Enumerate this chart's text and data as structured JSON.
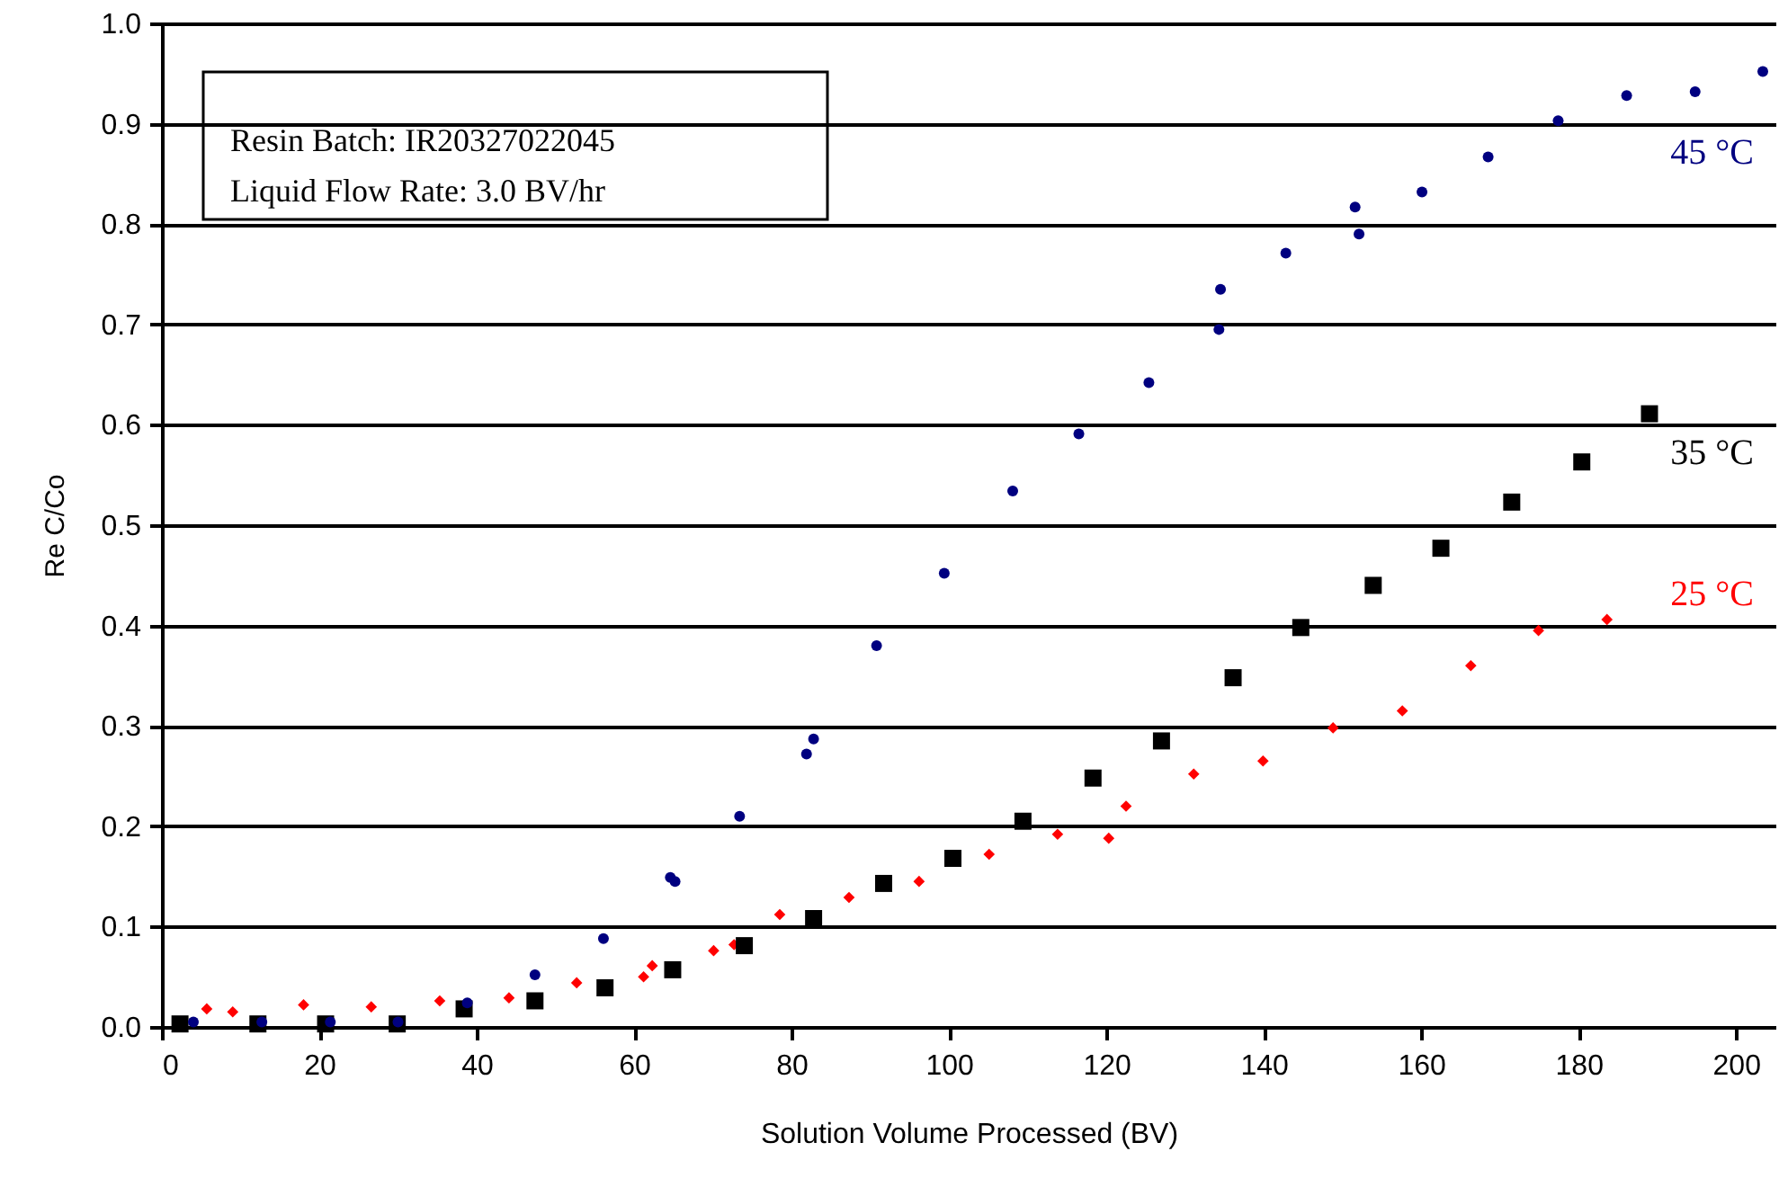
{
  "chart_data": {
    "type": "scatter",
    "xlabel": "Solution Volume Processed (BV)",
    "ylabel": "Re C/Co",
    "annotations": [
      "Resin Batch: IR20327022045",
      "Liquid Flow Rate: 3.0 BV/hr"
    ],
    "xlim": [
      0,
      205
    ],
    "xticks": [
      0,
      20,
      40,
      60,
      80,
      100,
      120,
      140,
      160,
      180,
      200
    ],
    "ylim": [
      0,
      1
    ],
    "yticks": [
      {
        "value": 0,
        "label": "0.0"
      },
      0.1,
      0.2,
      0.3,
      0.4,
      0.5,
      0.6,
      0.7,
      0.8,
      0.9,
      {
        "value": 1,
        "label": "1.0"
      }
    ],
    "grid": "y",
    "series": [
      {
        "name": "45 °C",
        "color": "#000080",
        "marker": "circle",
        "x": [
          4.0,
          12.7,
          21.4,
          30.0,
          38.8,
          47.4,
          56.1,
          64.6,
          65.2,
          73.4,
          81.9,
          82.8,
          90.8,
          99.4,
          108.1,
          116.5,
          125.4,
          134.3,
          134.5,
          142.8,
          152.1,
          151.6,
          160.1,
          168.5,
          177.4,
          186.1,
          194.8,
          203.4
        ],
        "values": [
          0.005,
          0.005,
          0.005,
          0.005,
          0.024,
          0.052,
          0.088,
          0.149,
          0.145,
          0.21,
          0.272,
          0.287,
          0.38,
          0.452,
          0.534,
          0.591,
          0.642,
          0.695,
          0.735,
          0.771,
          0.79,
          0.817,
          0.832,
          0.867,
          0.903,
          0.928,
          0.932,
          0.952
        ]
      },
      {
        "name": "35 °C",
        "color": "#000000",
        "marker": "square",
        "x": [
          2.3,
          12.2,
          20.8,
          29.9,
          38.4,
          47.4,
          56.3,
          64.9,
          74.0,
          82.8,
          91.7,
          100.5,
          109.4,
          118.3,
          127.0,
          136.1,
          144.7,
          153.9,
          162.5,
          171.5,
          180.4,
          189.0
        ],
        "values": [
          0.003,
          0.003,
          0.003,
          0.003,
          0.018,
          0.026,
          0.039,
          0.057,
          0.081,
          0.108,
          0.143,
          0.168,
          0.205,
          0.248,
          0.285,
          0.348,
          0.398,
          0.44,
          0.477,
          0.523,
          0.563,
          0.611
        ]
      },
      {
        "name": "25 °C",
        "color": "#ff0000",
        "marker": "diamond",
        "x": [
          5.7,
          9.0,
          18.0,
          26.6,
          35.3,
          44.1,
          52.7,
          61.2,
          62.3,
          70.1,
          72.7,
          78.5,
          87.3,
          96.2,
          105.1,
          113.8,
          120.3,
          122.5,
          131.1,
          139.9,
          148.8,
          157.6,
          166.3,
          174.9,
          183.6
        ],
        "values": [
          0.018,
          0.015,
          0.022,
          0.02,
          0.026,
          0.029,
          0.044,
          0.05,
          0.061,
          0.076,
          0.082,
          0.112,
          0.129,
          0.145,
          0.172,
          0.192,
          0.188,
          0.22,
          0.252,
          0.265,
          0.298,
          0.315,
          0.36,
          0.395,
          0.406
        ]
      }
    ]
  }
}
